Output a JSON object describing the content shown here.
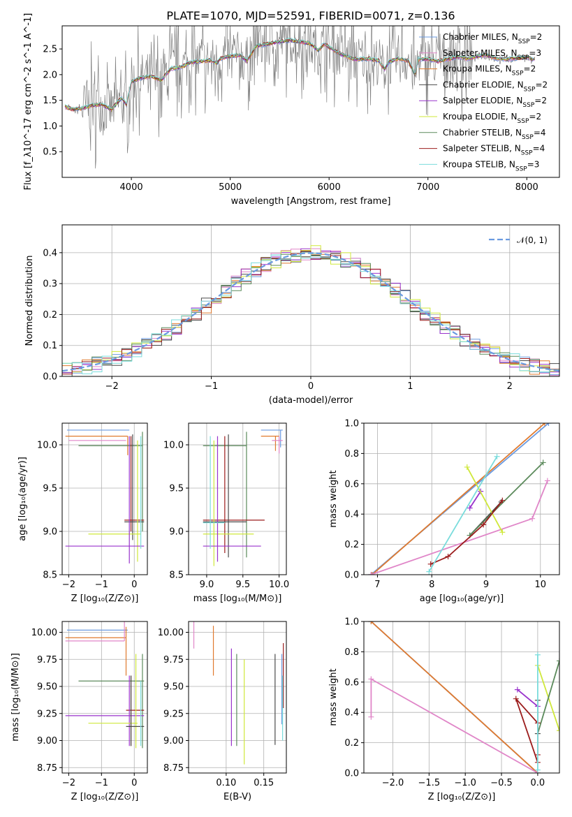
{
  "colors": {
    "Chabrier MILES": "#6a9ae0",
    "Salpeter MILES": "#e086c8",
    "Kroupa MILES": "#e07a2e",
    "Chabrier ELODIE": "#4b4b4b",
    "Salpeter ELODIE": "#9932cc",
    "Kroupa ELODIE": "#cfe83a",
    "Chabrier STELIB": "#5b8a5b",
    "Salpeter STELIB": "#9b1c1c",
    "Kroupa STELIB": "#7adcdc",
    "observed": "#808080"
  },
  "chart_data": [
    {
      "id": "spectrum",
      "type": "line",
      "title": "PLATE=1070, MJD=52591, FIBERID=0071, z=0.136",
      "xlabel": "wavelength [Angstrom, rest frame]",
      "ylabel": "Flux [f_λ10^-17 erg cm^-2 s^-1 A^-1]",
      "xlim": [
        3300,
        8330
      ],
      "ylim": [
        0.0,
        2.95
      ],
      "xticks": [
        "4000",
        "5000",
        "6000",
        "7000",
        "8000"
      ],
      "yticks": [
        "0.5",
        "1.0",
        "1.5",
        "2.0",
        "2.5"
      ],
      "legend_position": "top-right",
      "series": [
        {
          "name": "Chabrier MILES, N_SSP=2",
          "key": "Chabrier MILES"
        },
        {
          "name": "Salpeter MILES, N_SSP=3",
          "key": "Salpeter MILES"
        },
        {
          "name": "Kroupa MILES, N_SSP=2",
          "key": "Kroupa MILES"
        },
        {
          "name": "Chabrier ELODIE, N_SSP=2",
          "key": "Chabrier ELODIE"
        },
        {
          "name": "Salpeter ELODIE, N_SSP=2",
          "key": "Salpeter ELODIE"
        },
        {
          "name": "Kroupa ELODIE, N_SSP=2",
          "key": "Kroupa ELODIE"
        },
        {
          "name": "Chabrier STELIB, N_SSP=4",
          "key": "Chabrier STELIB"
        },
        {
          "name": "Salpeter STELIB, N_SSP=4",
          "key": "Salpeter STELIB"
        },
        {
          "name": "Kroupa STELIB, N_SSP=3",
          "key": "Kroupa STELIB"
        }
      ],
      "model_curve": [
        [
          3330,
          1.38
        ],
        [
          3400,
          1.32
        ],
        [
          3500,
          1.34
        ],
        [
          3600,
          1.4
        ],
        [
          3700,
          1.42
        ],
        [
          3800,
          1.32
        ],
        [
          3900,
          1.55
        ],
        [
          3950,
          1.42
        ],
        [
          4000,
          1.86
        ],
        [
          4100,
          1.94
        ],
        [
          4200,
          1.97
        ],
        [
          4300,
          1.88
        ],
        [
          4400,
          2.12
        ],
        [
          4500,
          2.14
        ],
        [
          4600,
          2.24
        ],
        [
          4700,
          2.26
        ],
        [
          4800,
          2.28
        ],
        [
          4860,
          2.22
        ],
        [
          4900,
          2.31
        ],
        [
          5000,
          2.36
        ],
        [
          5100,
          2.38
        ],
        [
          5170,
          2.26
        ],
        [
          5250,
          2.53
        ],
        [
          5300,
          2.57
        ],
        [
          5400,
          2.61
        ],
        [
          5500,
          2.64
        ],
        [
          5600,
          2.67
        ],
        [
          5700,
          2.64
        ],
        [
          5800,
          2.61
        ],
        [
          5890,
          2.47
        ],
        [
          5950,
          2.6
        ],
        [
          6050,
          2.47
        ],
        [
          6150,
          2.37
        ],
        [
          6250,
          2.3
        ],
        [
          6300,
          2.3
        ],
        [
          6400,
          2.31
        ],
        [
          6500,
          2.27
        ],
        [
          6563,
          2.1
        ],
        [
          6600,
          2.24
        ],
        [
          6700,
          2.31
        ],
        [
          6800,
          2.27
        ],
        [
          6870,
          2.0
        ],
        [
          6900,
          2.3
        ],
        [
          7000,
          2.3
        ],
        [
          7100,
          2.26
        ],
        [
          7200,
          2.3
        ],
        [
          7300,
          2.35
        ],
        [
          7400,
          2.31
        ],
        [
          7500,
          2.36
        ],
        [
          7600,
          2.38
        ],
        [
          7700,
          2.31
        ],
        [
          7800,
          2.3
        ],
        [
          7900,
          2.32
        ],
        [
          8000,
          2.34
        ],
        [
          8050,
          2.3
        ],
        [
          8080,
          2.3
        ]
      ]
    },
    {
      "id": "residuals",
      "type": "line",
      "xlabel": "(data-model)/error",
      "ylabel": "Normed distribution",
      "xlim": [
        -2.5,
        2.5
      ],
      "ylim": [
        0.0,
        0.49
      ],
      "xticks": [
        "−2",
        "−1",
        "0",
        "1",
        "2"
      ],
      "yticks": [
        "0.0",
        "0.1",
        "0.2",
        "0.3",
        "0.4"
      ],
      "legend_position": "top-right",
      "reference_label": "𝒩(0, 1)",
      "reference_mean": 0,
      "reference_sigma": 1
    },
    {
      "id": "age-vs-Z",
      "type": "scatter",
      "xlabel": "Z [log₁₀(Z/Z⊙)]",
      "ylabel": "age  [log₁₀(age/yr)]",
      "xlim": [
        -2.2,
        0.4
      ],
      "ylim": [
        8.5,
        10.25
      ],
      "xticks": [
        "−2",
        "−1",
        "0"
      ],
      "yticks": [
        "8.5",
        "9.0",
        "9.5",
        "10.0"
      ]
    },
    {
      "id": "age-vs-mass",
      "type": "scatter",
      "xlabel": "mass [log₁₀(M/M⊙)]",
      "ylabel": "",
      "xlim": [
        8.75,
        10.1
      ],
      "ylim": [
        8.5,
        10.25
      ],
      "xticks": [
        "9.0",
        "9.5",
        "10.0"
      ],
      "yticks": [
        "8.5",
        "9.0",
        "9.5",
        "10.0"
      ]
    },
    {
      "id": "weight-vs-age",
      "type": "line",
      "xlabel": "age  [log₁₀(age/yr)]",
      "ylabel": "mass weight",
      "xlim": [
        6.75,
        10.35
      ],
      "ylim": [
        0.0,
        1.0
      ],
      "xticks": [
        "7",
        "8",
        "9",
        "10"
      ],
      "yticks": [
        "0.0",
        "0.2",
        "0.4",
        "0.6",
        "0.8",
        "1.0"
      ],
      "series": [
        {
          "key": "Chabrier MILES",
          "x": [
            6.88,
            10.15
          ],
          "y": [
            0.0,
            1.0
          ]
        },
        {
          "key": "Kroupa MILES",
          "x": [
            6.9,
            10.08
          ],
          "y": [
            0.0,
            1.0
          ]
        },
        {
          "key": "Salpeter MILES",
          "x": [
            6.88,
            9.85,
            10.13
          ],
          "y": [
            0.0,
            0.37,
            0.62
          ]
        },
        {
          "key": "Chabrier ELODIE",
          "x": [
            8.7,
            9.28
          ],
          "y": [
            0.26,
            0.48
          ]
        },
        {
          "key": "Salpeter ELODIE",
          "x": [
            8.7,
            8.9
          ],
          "y": [
            0.44,
            0.55
          ]
        },
        {
          "key": "Kroupa ELODIE",
          "x": [
            8.65,
            9.3
          ],
          "y": [
            0.71,
            0.28
          ]
        },
        {
          "key": "Chabrier STELIB",
          "x": [
            8.7,
            10.05
          ],
          "y": [
            0.26,
            0.74
          ]
        },
        {
          "key": "Salpeter STELIB",
          "x": [
            7.98,
            8.3,
            8.95,
            9.3
          ],
          "y": [
            0.07,
            0.12,
            0.33,
            0.49
          ]
        },
        {
          "key": "Kroupa STELIB",
          "x": [
            7.95,
            9.2
          ],
          "y": [
            0.02,
            0.78
          ]
        }
      ]
    },
    {
      "id": "mass-vs-Z",
      "type": "scatter",
      "xlabel": "Z [log₁₀(Z/Z⊙)]",
      "ylabel": "mass [log₁₀(M/M⊙)]",
      "xlim": [
        -2.2,
        0.4
      ],
      "ylim": [
        8.7,
        10.1
      ],
      "xticks": [
        "−2",
        "−1",
        "0"
      ],
      "yticks": [
        "8.75",
        "9.00",
        "9.25",
        "9.50",
        "9.75",
        "10.00"
      ]
    },
    {
      "id": "mass-vs-ebv",
      "type": "scatter",
      "xlabel": "E(B-V)",
      "ylabel": "",
      "xlim": [
        0.05,
        0.18
      ],
      "ylim": [
        8.7,
        10.1
      ],
      "xticks": [
        "0.10",
        "0.15"
      ],
      "yticks": [
        "8.75",
        "9.00",
        "9.25",
        "9.50",
        "9.75",
        "10.00"
      ]
    },
    {
      "id": "weight-vs-Z",
      "type": "line",
      "xlabel": "Z [log₁₀(Z/Z⊙)]",
      "ylabel": "mass weight",
      "xlim": [
        -2.4,
        0.3
      ],
      "ylim": [
        0.0,
        1.0
      ],
      "xticks": [
        "−2.0",
        "−1.5",
        "−1.0",
        "−0.5",
        "0.0"
      ],
      "yticks": [
        "0.0",
        "0.2",
        "0.4",
        "0.6",
        "0.8",
        "1.0"
      ],
      "series": [
        {
          "key": "Chabrier MILES",
          "x": [
            -2.3,
            0.0
          ],
          "y": [
            1.0,
            0.0
          ]
        },
        {
          "key": "Kroupa MILES",
          "x": [
            -2.3,
            0.0
          ],
          "y": [
            1.0,
            0.0
          ]
        },
        {
          "key": "Salpeter MILES",
          "x": [
            0.0,
            -2.3,
            -2.3
          ],
          "y": [
            0.0,
            0.62,
            0.37
          ]
        },
        {
          "key": "Salpeter ELODIE",
          "x": [
            -0.28,
            0.0
          ],
          "y": [
            0.55,
            0.44
          ]
        },
        {
          "key": "Kroupa ELODIE",
          "x": [
            0.0,
            0.3
          ],
          "y": [
            0.71,
            0.28
          ]
        },
        {
          "key": "Chabrier STELIB",
          "x": [
            0.0,
            0.3
          ],
          "y": [
            0.26,
            0.74
          ]
        },
        {
          "key": "Chabrier ELODIE",
          "x": [
            0.0,
            0.0
          ],
          "y": [
            0.26,
            0.48
          ]
        },
        {
          "key": "Salpeter STELIB",
          "x": [
            0.0,
            -0.3,
            0.0,
            0.0
          ],
          "y": [
            0.07,
            0.49,
            0.33,
            0.12
          ]
        },
        {
          "key": "Kroupa STELIB",
          "x": [
            0.0,
            0.0
          ],
          "y": [
            0.02,
            0.78
          ]
        }
      ]
    }
  ]
}
